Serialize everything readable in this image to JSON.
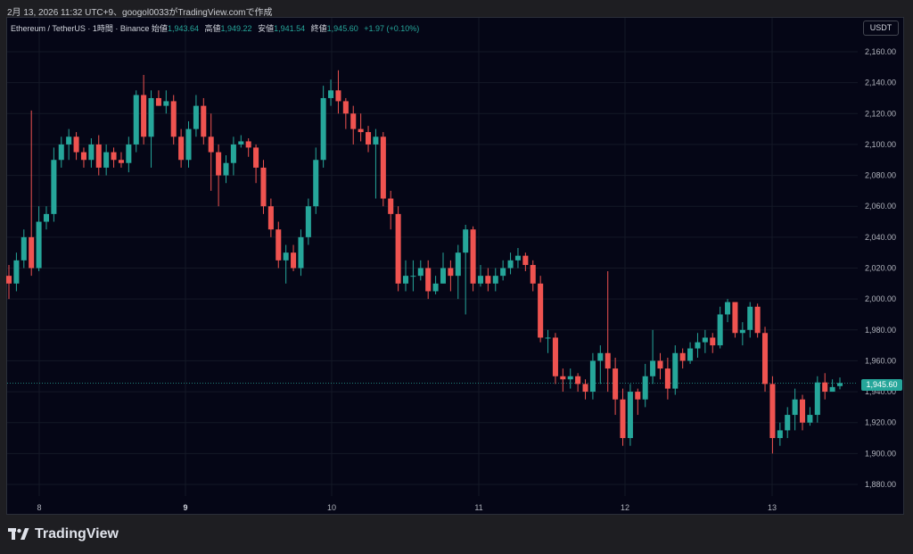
{
  "header": {
    "attribution": "2月 13, 2026 11:32 UTC+9、googol0033がTradingView.comで作成"
  },
  "legend": {
    "symbol": "Ethereum / TetherUS · 1時間 · Binance",
    "open_label": "始値",
    "open": "1,943.64",
    "high_label": "高値",
    "high": "1,949.22",
    "low_label": "安値",
    "low": "1,941.54",
    "close_label": "終値",
    "close": "1,945.60",
    "change": "+1.97 (+0.10%)"
  },
  "currency_button": "USDT",
  "last_price_tag": "1,945.60",
  "brand": {
    "name": "TradingView",
    "logo_icon": "tradingview-logo-icon"
  },
  "colors": {
    "up": "#26a69a",
    "down": "#ef5350",
    "background": "#050616",
    "grid": "#141826"
  },
  "chart_data": {
    "type": "candlestick",
    "y_axis_labels": [
      "2,160.00",
      "2,140.00",
      "2,120.00",
      "2,100.00",
      "2,080.00",
      "2,060.00",
      "2,040.00",
      "2,020.00",
      "2,000.00",
      "1,980.00",
      "1,960.00",
      "1,940.00",
      "1,920.00",
      "1,900.00",
      "1,880.00"
    ],
    "y_axis_values": [
      2160,
      2140,
      2120,
      2100,
      2080,
      2060,
      2040,
      2020,
      2000,
      1980,
      1960,
      1940,
      1920,
      1900,
      1880
    ],
    "x_axis_labels": [
      {
        "label": "8",
        "bold": false
      },
      {
        "label": "9",
        "bold": true
      },
      {
        "label": "10",
        "bold": false
      },
      {
        "label": "11",
        "bold": false
      },
      {
        "label": "12",
        "bold": false
      },
      {
        "label": "13",
        "bold": false
      }
    ],
    "ylim": [
      1870,
      2172
    ],
    "last_price": 1945.6,
    "closes": [
      2010,
      2025,
      2040,
      2020,
      2050,
      2055,
      2090,
      2100,
      2105,
      2095,
      2090,
      2100,
      2085,
      2095,
      2090,
      2088,
      2100,
      2132,
      2105,
      2130,
      2125,
      2128,
      2105,
      2090,
      2110,
      2125,
      2105,
      2095,
      2080,
      2088,
      2100,
      2102,
      2098,
      2085,
      2060,
      2045,
      2025,
      2030,
      2020,
      2040,
      2060,
      2090,
      2130,
      2135,
      2128,
      2120,
      2110,
      2108,
      2100,
      2105,
      2065,
      2055,
      2010,
      2015,
      2015,
      2020,
      2005,
      2010,
      2020,
      2015,
      2030,
      2045,
      2010,
      2015,
      2010,
      2015,
      2020,
      2025,
      2028,
      2022,
      2010,
      1975,
      1975,
      1950,
      1948,
      1950,
      1945,
      1940,
      1960,
      1965,
      1955,
      1935,
      1910,
      1940,
      1935,
      1950,
      1960,
      1955,
      1942,
      1965,
      1960,
      1968,
      1972,
      1975,
      1970,
      1990,
      1998,
      1978,
      1980,
      1995,
      1978,
      1945,
      1910,
      1915,
      1925,
      1935,
      1920,
      1925,
      1946,
      1940,
      1943,
      1945.6
    ],
    "opens": [
      2015,
      2010,
      2025,
      2040,
      2020,
      2050,
      2055,
      2090,
      2100,
      2105,
      2095,
      2090,
      2100,
      2085,
      2095,
      2090,
      2088,
      2100,
      2132,
      2105,
      2130,
      2125,
      2128,
      2105,
      2090,
      2110,
      2125,
      2105,
      2095,
      2080,
      2088,
      2100,
      2102,
      2098,
      2085,
      2060,
      2045,
      2025,
      2030,
      2020,
      2040,
      2060,
      2090,
      2130,
      2135,
      2128,
      2120,
      2110,
      2108,
      2100,
      2105,
      2065,
      2055,
      2010,
      2015,
      2015,
      2020,
      2005,
      2010,
      2020,
      2015,
      2030,
      2045,
      2010,
      2015,
      2010,
      2015,
      2020,
      2025,
      2028,
      2022,
      2010,
      1975,
      1975,
      1950,
      1948,
      1950,
      1945,
      1940,
      1960,
      1965,
      1955,
      1935,
      1910,
      1940,
      1935,
      1950,
      1960,
      1955,
      1942,
      1965,
      1960,
      1968,
      1972,
      1975,
      1970,
      1990,
      1998,
      1978,
      1980,
      1995,
      1978,
      1945,
      1910,
      1915,
      1925,
      1935,
      1920,
      1925,
      1946,
      1940,
      1943.64
    ],
    "highs": [
      2022,
      2030,
      2045,
      2122,
      2060,
      2060,
      2098,
      2105,
      2110,
      2108,
      2098,
      2104,
      2106,
      2100,
      2098,
      2095,
      2105,
      2135,
      2145,
      2135,
      2135,
      2135,
      2132,
      2110,
      2115,
      2132,
      2130,
      2120,
      2100,
      2093,
      2105,
      2106,
      2104,
      2100,
      2090,
      2065,
      2050,
      2035,
      2035,
      2045,
      2065,
      2098,
      2138,
      2142,
      2148,
      2130,
      2125,
      2120,
      2112,
      2110,
      2108,
      2070,
      2060,
      2025,
      2025,
      2025,
      2025,
      2015,
      2030,
      2025,
      2035,
      2048,
      2047,
      2022,
      2020,
      2020,
      2025,
      2030,
      2033,
      2030,
      2025,
      2015,
      1980,
      1978,
      1955,
      1955,
      1952,
      1948,
      1965,
      1970,
      2018,
      1962,
      1942,
      1945,
      1942,
      1958,
      1980,
      1965,
      1962,
      1970,
      1968,
      1972,
      1978,
      1980,
      1978,
      1995,
      2000,
      1995,
      1985,
      1998,
      1997,
      1982,
      1950,
      1920,
      1930,
      1942,
      1938,
      1930,
      1950,
      1952,
      1948,
      1949.22
    ],
    "lows": [
      2000,
      2005,
      2020,
      2015,
      2018,
      2045,
      2050,
      2085,
      2090,
      2090,
      2085,
      2085,
      2080,
      2080,
      2085,
      2085,
      2082,
      2095,
      2100,
      2085,
      2125,
      2120,
      2100,
      2085,
      2085,
      2105,
      2100,
      2070,
      2060,
      2075,
      2080,
      2098,
      2092,
      2075,
      2055,
      2040,
      2020,
      2010,
      2018,
      2015,
      2035,
      2055,
      2085,
      2125,
      2120,
      2110,
      2100,
      2102,
      2095,
      2065,
      2060,
      2045,
      2005,
      2005,
      2005,
      2012,
      2000,
      2003,
      2010,
      2005,
      2000,
      1990,
      2005,
      2008,
      2005,
      2005,
      2012,
      2016,
      2020,
      2018,
      2005,
      1972,
      1965,
      1945,
      1940,
      1942,
      1940,
      1935,
      1935,
      1945,
      1940,
      1925,
      1905,
      1905,
      1925,
      1930,
      1945,
      1948,
      1935,
      1938,
      1955,
      1958,
      1962,
      1965,
      1965,
      1968,
      1985,
      1975,
      1970,
      1975,
      1975,
      1940,
      1900,
      1905,
      1910,
      1915,
      1915,
      1918,
      1920,
      1935,
      1940,
      1941.54
    ]
  }
}
